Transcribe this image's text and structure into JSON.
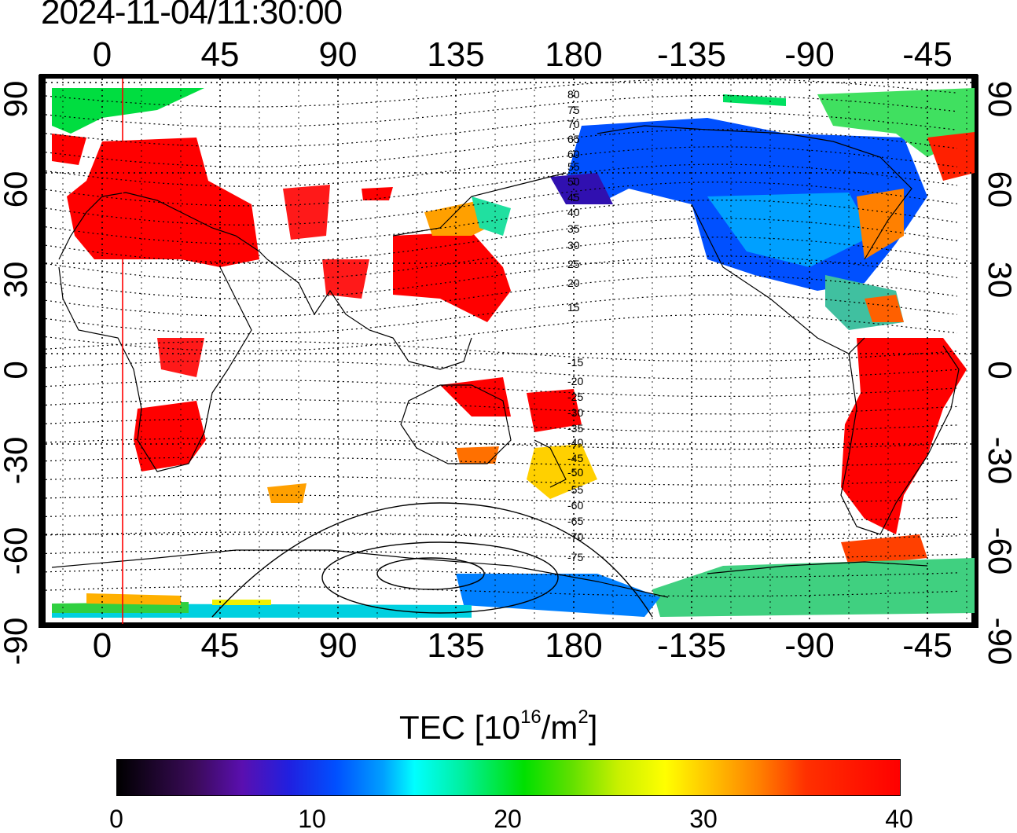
{
  "timestamp": "2024-11-04/11:30:00",
  "map": {
    "lon_ticks_top": [
      "0",
      "45",
      "90",
      "135",
      "180",
      "-135",
      "-90",
      "-45"
    ],
    "lon_ticks_bottom": [
      "0",
      "45",
      "90",
      "135",
      "180",
      "-135",
      "-90",
      "-45"
    ],
    "lat_ticks_left": [
      "90",
      "60",
      "30",
      "0",
      "-30",
      "-60",
      "-90"
    ],
    "lat_ticks_right": [
      "90",
      "60",
      "30",
      "0",
      "-30",
      "-60",
      "-90"
    ],
    "contour_labels_north": [
      "80",
      "75",
      "70",
      "65",
      "60",
      "55",
      "50",
      "45",
      "40",
      "35",
      "30",
      "25",
      "20",
      "15"
    ],
    "contour_labels_south": [
      "15",
      "20",
      "25",
      "30",
      "35",
      "40",
      "45",
      "50",
      "55",
      "60",
      "65",
      "70",
      "75"
    ],
    "terminator_longitude": 8,
    "grid": "dotted",
    "projection": "equirectangular"
  },
  "colorbar": {
    "title_main": "TEC  [10",
    "title_exp": "16",
    "title_unit": "/m",
    "title_exp2": "2",
    "title_close": "]",
    "ticks": [
      "0",
      "10",
      "20",
      "30",
      "40"
    ],
    "min": 0,
    "max": 40
  },
  "colors": {
    "low": "#000000",
    "mid_blue": "#0050ff",
    "mid_green": "#00e000",
    "mid_yellow": "#ffff00",
    "high": "#ff0000",
    "terminator": "#ff0000"
  }
}
